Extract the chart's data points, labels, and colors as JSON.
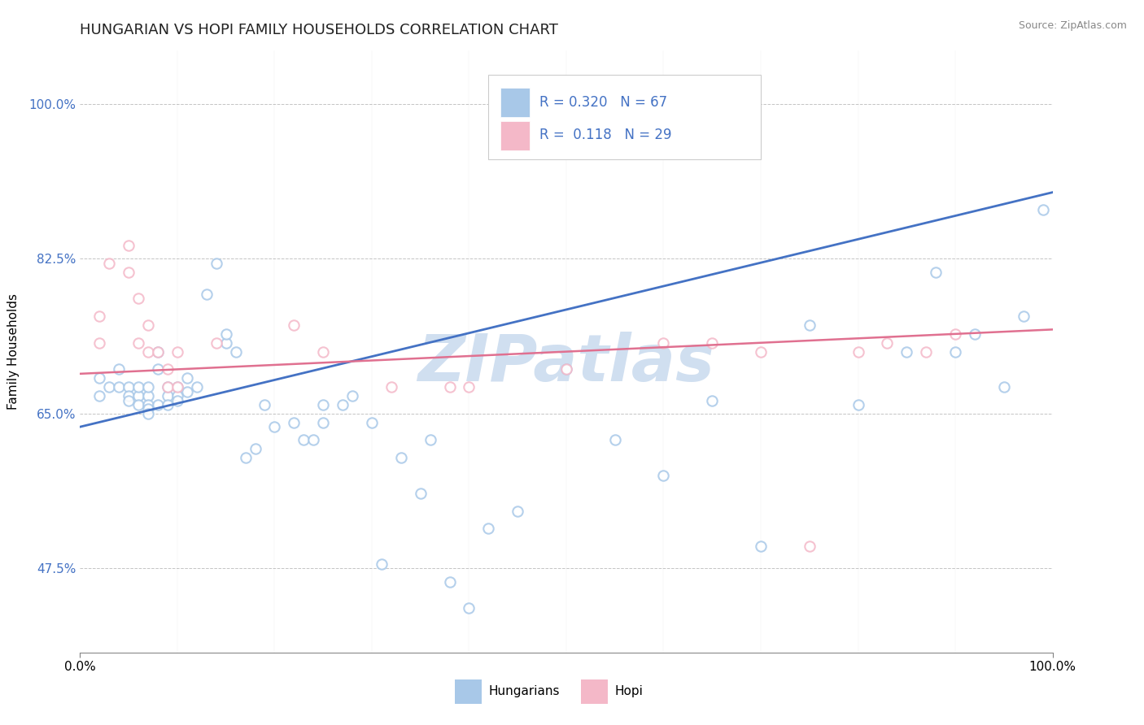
{
  "title": "HUNGARIAN VS HOPI FAMILY HOUSEHOLDS CORRELATION CHART",
  "source": "Source: ZipAtlas.com",
  "ylabel": "Family Households",
  "xlim": [
    0.0,
    1.0
  ],
  "ylim": [
    0.38,
    1.06
  ],
  "yticks": [
    0.475,
    0.65,
    0.825,
    1.0
  ],
  "ytick_labels": [
    "47.5%",
    "65.0%",
    "82.5%",
    "100.0%"
  ],
  "xticks": [
    0.0,
    1.0
  ],
  "xtick_labels": [
    "0.0%",
    "100.0%"
  ],
  "hungarian_color": "#a8c8e8",
  "hopi_color": "#f4b8c8",
  "hungarian_line_color": "#4472c4",
  "hopi_line_color": "#e07090",
  "watermark": "ZIPatlas",
  "watermark_color": "#d0dff0",
  "background_color": "#ffffff",
  "r_hungarian": 0.32,
  "r_hopi": 0.118,
  "n_hungarian": 67,
  "n_hopi": 29,
  "title_fontsize": 13,
  "label_fontsize": 11,
  "tick_fontsize": 11,
  "marker_size": 80,
  "hungarian_x": [
    0.02,
    0.02,
    0.03,
    0.04,
    0.04,
    0.05,
    0.05,
    0.05,
    0.06,
    0.06,
    0.06,
    0.07,
    0.07,
    0.07,
    0.07,
    0.07,
    0.08,
    0.08,
    0.08,
    0.09,
    0.09,
    0.09,
    0.1,
    0.1,
    0.1,
    0.11,
    0.11,
    0.12,
    0.13,
    0.14,
    0.15,
    0.15,
    0.16,
    0.17,
    0.18,
    0.19,
    0.2,
    0.22,
    0.23,
    0.24,
    0.25,
    0.25,
    0.27,
    0.28,
    0.3,
    0.31,
    0.33,
    0.35,
    0.36,
    0.38,
    0.4,
    0.42,
    0.45,
    0.5,
    0.55,
    0.6,
    0.65,
    0.7,
    0.75,
    0.8,
    0.85,
    0.88,
    0.9,
    0.92,
    0.95,
    0.97,
    0.99
  ],
  "hungarian_y": [
    0.69,
    0.67,
    0.68,
    0.7,
    0.68,
    0.68,
    0.67,
    0.665,
    0.67,
    0.66,
    0.68,
    0.67,
    0.66,
    0.655,
    0.65,
    0.68,
    0.66,
    0.7,
    0.72,
    0.67,
    0.68,
    0.66,
    0.68,
    0.67,
    0.665,
    0.675,
    0.69,
    0.68,
    0.785,
    0.82,
    0.73,
    0.74,
    0.72,
    0.6,
    0.61,
    0.66,
    0.635,
    0.64,
    0.62,
    0.62,
    0.64,
    0.66,
    0.66,
    0.67,
    0.64,
    0.48,
    0.6,
    0.56,
    0.62,
    0.46,
    0.43,
    0.52,
    0.54,
    0.7,
    0.62,
    0.58,
    0.665,
    0.5,
    0.75,
    0.66,
    0.72,
    0.81,
    0.72,
    0.74,
    0.68,
    0.76,
    0.88
  ],
  "hopi_x": [
    0.02,
    0.02,
    0.03,
    0.05,
    0.05,
    0.06,
    0.06,
    0.07,
    0.07,
    0.08,
    0.09,
    0.09,
    0.1,
    0.1,
    0.14,
    0.22,
    0.25,
    0.32,
    0.38,
    0.4,
    0.5,
    0.6,
    0.65,
    0.7,
    0.75,
    0.8,
    0.83,
    0.87,
    0.9
  ],
  "hopi_y": [
    0.73,
    0.76,
    0.82,
    0.81,
    0.84,
    0.78,
    0.73,
    0.75,
    0.72,
    0.72,
    0.7,
    0.68,
    0.68,
    0.72,
    0.73,
    0.75,
    0.72,
    0.68,
    0.68,
    0.68,
    0.7,
    0.73,
    0.73,
    0.72,
    0.5,
    0.72,
    0.73,
    0.72,
    0.74
  ]
}
